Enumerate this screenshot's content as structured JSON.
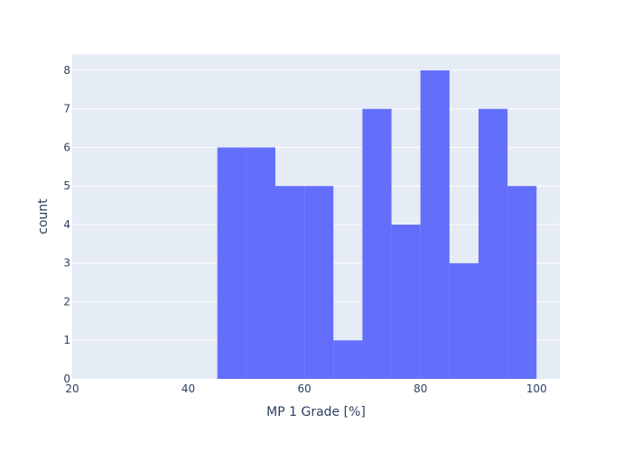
{
  "chart_data": {
    "type": "bar",
    "title": "",
    "xlabel": "MP 1 Grade [%]",
    "ylabel": "count",
    "xlim": [
      20,
      104
    ],
    "ylim": [
      0,
      8.42
    ],
    "xticks": [
      "20",
      "40",
      "60",
      "80",
      "100"
    ],
    "yticks": [
      "0",
      "1",
      "2",
      "3",
      "4",
      "5",
      "6",
      "7",
      "8"
    ],
    "bin_width": 5,
    "bins": [
      {
        "start": 45,
        "end": 50,
        "count": 6
      },
      {
        "start": 50,
        "end": 55,
        "count": 6
      },
      {
        "start": 55,
        "end": 60,
        "count": 5
      },
      {
        "start": 60,
        "end": 65,
        "count": 5
      },
      {
        "start": 65,
        "end": 70,
        "count": 1
      },
      {
        "start": 70,
        "end": 75,
        "count": 7
      },
      {
        "start": 75,
        "end": 80,
        "count": 4
      },
      {
        "start": 80,
        "end": 85,
        "count": 8
      },
      {
        "start": 85,
        "end": 90,
        "count": 3
      },
      {
        "start": 90,
        "end": 95,
        "count": 7
      },
      {
        "start": 95,
        "end": 100,
        "count": 5
      }
    ],
    "grid": true,
    "colors": {
      "bar": "#636efa",
      "plot_bg": "#e5ecf6",
      "grid": "#ffffff",
      "text": "#2a3f5f"
    }
  }
}
